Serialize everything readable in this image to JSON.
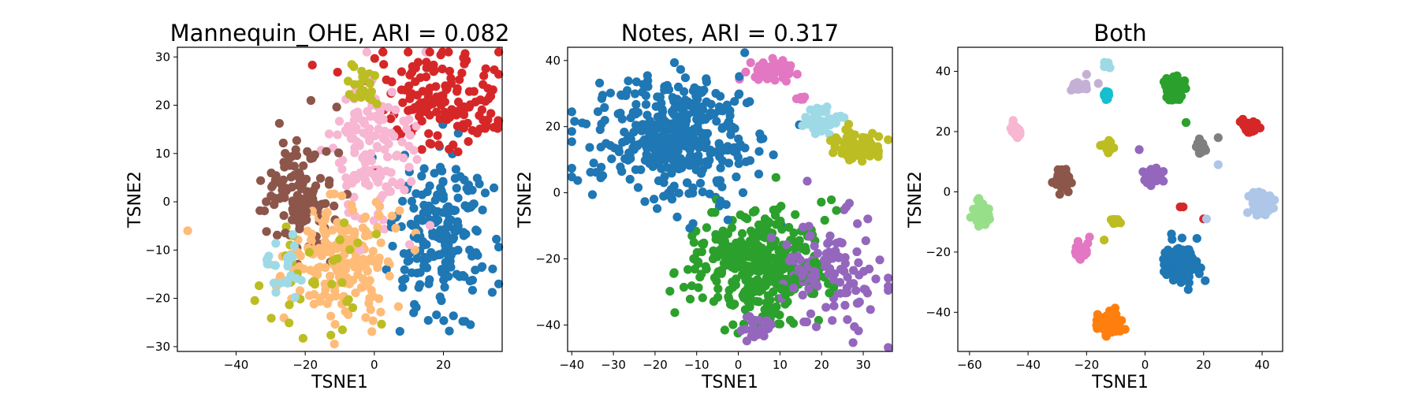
{
  "figure": {
    "background": "#ffffff"
  },
  "chart_data": [
    {
      "type": "scatter",
      "title": "Mannequin_OHE, ARI = 0.082",
      "xlabel": "TSNE1",
      "ylabel": "TSNE2",
      "xlim": [
        -57,
        37
      ],
      "ylim": [
        -31,
        32
      ],
      "xticks": [
        -40,
        -20,
        0,
        20
      ],
      "yticks": [
        -30,
        -20,
        -10,
        0,
        10,
        20,
        30
      ],
      "grid": false,
      "legend": "none",
      "clusters": [
        {
          "color": "#1f77b4",
          "cx": 20,
          "cy": -8,
          "sx": 7,
          "sy": 9,
          "n": 200
        },
        {
          "color": "#d62728",
          "cx": 18,
          "cy": 21,
          "sx": 9,
          "sy": 5,
          "n": 160
        },
        {
          "color": "#f7b6d2",
          "cx": 0,
          "cy": 10,
          "sx": 6,
          "sy": 8,
          "n": 150
        },
        {
          "color": "#8c564b",
          "cx": -22,
          "cy": 2,
          "sx": 5,
          "sy": 6,
          "n": 130
        },
        {
          "color": "#ffbb78",
          "cx": -10,
          "cy": -12,
          "sx": 7,
          "sy": 6,
          "n": 200
        },
        {
          "color": "#bcbd22",
          "cx": -3,
          "cy": 24,
          "sx": 2.5,
          "sy": 2.5,
          "n": 25
        },
        {
          "color": "#bcbd22",
          "cx": -12,
          "cy": -16,
          "sx": 8,
          "sy": 7,
          "n": 35
        },
        {
          "color": "#9edae5",
          "cx": -26,
          "cy": -13,
          "sx": 3,
          "sy": 3,
          "n": 25
        }
      ],
      "points": [
        {
          "x": -54,
          "y": -6,
          "color": "#ffbb78"
        }
      ]
    },
    {
      "type": "scatter",
      "title": "Notes, ARI = 0.317",
      "xlabel": "TSNE1",
      "ylabel": "TSNE2",
      "xlim": [
        -41,
        37
      ],
      "ylim": [
        -48,
        44
      ],
      "xticks": [
        -40,
        -30,
        -20,
        -10,
        0,
        10,
        20,
        30
      ],
      "yticks": [
        -40,
        -20,
        0,
        20,
        40
      ],
      "grid": false,
      "legend": "none",
      "clusters": [
        {
          "color": "#1f77b4",
          "cx": -15,
          "cy": 17,
          "sx": 10,
          "sy": 9,
          "n": 420
        },
        {
          "color": "#2ca02c",
          "cx": 5,
          "cy": -22,
          "sx": 8,
          "sy": 8,
          "n": 380
        },
        {
          "color": "#9467bd",
          "cx": 22,
          "cy": -24,
          "sx": 6,
          "sy": 9,
          "n": 110
        },
        {
          "color": "#9467bd",
          "cx": 5,
          "cy": -41,
          "sx": 2,
          "sy": 2,
          "n": 25
        },
        {
          "color": "#e377c2",
          "cx": 8,
          "cy": 37,
          "sx": 2.5,
          "sy": 1.8,
          "n": 60
        },
        {
          "color": "#e377c2",
          "cx": 15,
          "cy": 29,
          "sx": 0.7,
          "sy": 0.7,
          "n": 6
        },
        {
          "color": "#9edae5",
          "cx": 20,
          "cy": 22,
          "sx": 2.5,
          "sy": 2,
          "n": 45
        },
        {
          "color": "#bcbd22",
          "cx": 29,
          "cy": 14,
          "sx": 3,
          "sy": 2.3,
          "n": 70
        }
      ],
      "points": []
    },
    {
      "type": "scatter",
      "title": "Both",
      "xlabel": "TSNE1",
      "ylabel": "TSNE2",
      "xlim": [
        -64,
        47
      ],
      "ylim": [
        -53,
        48
      ],
      "xticks": [
        -60,
        -40,
        -20,
        0,
        20,
        40
      ],
      "yticks": [
        -40,
        -20,
        0,
        20,
        40
      ],
      "grid": false,
      "legend": "none",
      "clusters": [
        {
          "color": "#1f77b4",
          "cx": 12,
          "cy": -24,
          "sx": 2.5,
          "sy": 3,
          "n": 160
        },
        {
          "color": "#ff7f0e",
          "cx": -12,
          "cy": -44,
          "sx": 2,
          "sy": 1.8,
          "n": 100
        },
        {
          "color": "#2ca02c",
          "cx": 10,
          "cy": 34,
          "sx": 1.5,
          "sy": 1.8,
          "n": 100
        },
        {
          "color": "#d62728",
          "cx": 36,
          "cy": 22,
          "sx": 1.5,
          "sy": 1,
          "n": 60
        },
        {
          "color": "#9467bd",
          "cx": 2,
          "cy": 5,
          "sx": 1.5,
          "sy": 1.2,
          "n": 70
        },
        {
          "color": "#8c564b",
          "cx": -28,
          "cy": 4,
          "sx": 1.2,
          "sy": 2,
          "n": 45
        },
        {
          "color": "#e377c2",
          "cx": -22,
          "cy": -20,
          "sx": 1,
          "sy": 1.2,
          "n": 40
        },
        {
          "color": "#7f7f7f",
          "cx": 19,
          "cy": 15,
          "sx": 0.7,
          "sy": 1.2,
          "n": 25
        },
        {
          "color": "#bcbd22",
          "cx": -13,
          "cy": 15,
          "sx": 1,
          "sy": 1,
          "n": 22
        },
        {
          "color": "#bcbd22",
          "cx": -10,
          "cy": -10,
          "sx": 0.8,
          "sy": 0.5,
          "n": 15
        },
        {
          "color": "#17becf",
          "cx": -13,
          "cy": 32,
          "sx": 0.8,
          "sy": 0.8,
          "n": 18
        },
        {
          "color": "#aec7e8",
          "cx": 40,
          "cy": -4,
          "sx": 1.8,
          "sy": 1.8,
          "n": 110
        },
        {
          "color": "#98df8a",
          "cx": -56,
          "cy": -7,
          "sx": 1.5,
          "sy": 2,
          "n": 60
        },
        {
          "color": "#c5b0d5",
          "cx": -23,
          "cy": 35,
          "sx": 1.2,
          "sy": 0.8,
          "n": 30
        },
        {
          "color": "#9edae5",
          "cx": -13,
          "cy": 42,
          "sx": 0.6,
          "sy": 0.6,
          "n": 14
        },
        {
          "color": "#f7b6d2",
          "cx": -44,
          "cy": 20,
          "sx": 1,
          "sy": 1.5,
          "n": 25
        }
      ],
      "points": [
        {
          "x": -20,
          "y": 39,
          "color": "#c5b0d5"
        },
        {
          "x": -16,
          "y": 36,
          "color": "#c5b0d5"
        },
        {
          "x": 14,
          "y": 23,
          "color": "#2ca02c"
        },
        {
          "x": 25,
          "y": 18,
          "color": "#7f7f7f"
        },
        {
          "x": -2,
          "y": 14,
          "color": "#9467bd"
        },
        {
          "x": 25,
          "y": 9,
          "color": "#aec7e8"
        },
        {
          "x": 13,
          "y": -5,
          "color": "#d62728"
        },
        {
          "x": 12,
          "y": -5,
          "color": "#d62728"
        },
        {
          "x": 20,
          "y": -9,
          "color": "#d62728"
        },
        {
          "x": 21,
          "y": -9,
          "color": "#aec7e8"
        },
        {
          "x": -19,
          "y": -15,
          "color": "#e377c2"
        },
        {
          "x": -14,
          "y": -16,
          "color": "#bcbd22"
        },
        {
          "x": 9,
          "y": -14,
          "color": "#1f77b4"
        }
      ]
    }
  ]
}
